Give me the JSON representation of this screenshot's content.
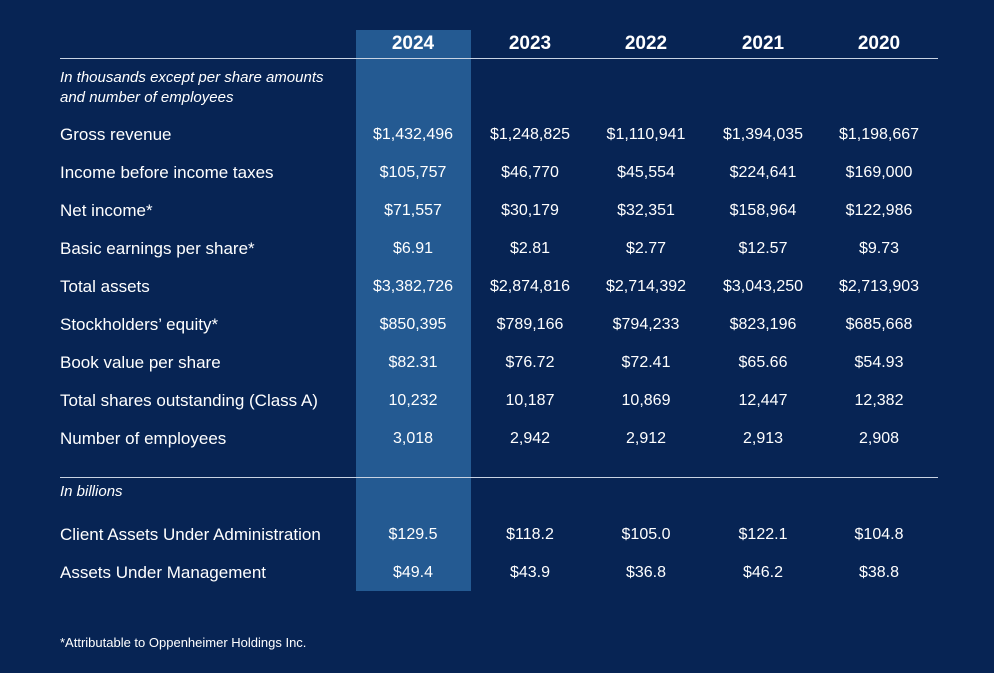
{
  "header": {
    "years": [
      "2024",
      "2023",
      "2022",
      "2021",
      "2020"
    ]
  },
  "sections": [
    {
      "note": "In thousands except per share amounts and number of employees",
      "rows": [
        {
          "label": "Gross revenue",
          "values": [
            "$1,432,496",
            "$1,248,825",
            "$1,110,941",
            "$1,394,035",
            "$1,198,667"
          ]
        },
        {
          "label": "Income before income taxes",
          "values": [
            "$105,757",
            "$46,770",
            "$45,554",
            "$224,641",
            "$169,000"
          ]
        },
        {
          "label": "Net income*",
          "values": [
            "$71,557",
            "$30,179",
            "$32,351",
            "$158,964",
            "$122,986"
          ]
        },
        {
          "label": "Basic earnings per share*",
          "values": [
            "$6.91",
            "$2.81",
            "$2.77",
            "$12.57",
            "$9.73"
          ]
        },
        {
          "label": "Total assets",
          "values": [
            "$3,382,726",
            "$2,874,816",
            "$2,714,392",
            "$3,043,250",
            "$2,713,903"
          ]
        },
        {
          "label": "Stockholders’ equity*",
          "values": [
            "$850,395",
            "$789,166",
            "$794,233",
            "$823,196",
            "$685,668"
          ]
        },
        {
          "label": "Book value per share",
          "values": [
            "$82.31",
            "$76.72",
            "$72.41",
            "$65.66",
            "$54.93"
          ]
        },
        {
          "label": "Total shares outstanding (Class A)",
          "values": [
            "10,232",
            "10,187",
            "10,869",
            "12,447",
            "12,382"
          ]
        },
        {
          "label": "Number of employees",
          "values": [
            "3,018",
            "2,942",
            "2,912",
            "2,913",
            "2,908"
          ]
        }
      ]
    },
    {
      "note": "In billions",
      "rows": [
        {
          "label": "Client Assets Under Administration",
          "values": [
            "$129.5",
            "$118.2",
            "$105.0",
            "$122.1",
            "$104.8"
          ]
        },
        {
          "label": "Assets Under Management",
          "values": [
            "$49.4",
            "$43.9",
            "$36.8",
            "$46.2",
            "$38.8"
          ]
        }
      ]
    }
  ],
  "footnote": "*Attributable to Oppenheimer Holdings Inc."
}
